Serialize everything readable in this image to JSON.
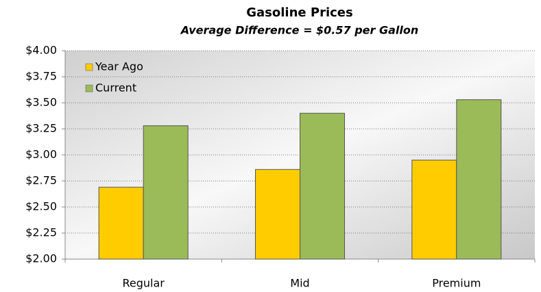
{
  "chart_data": {
    "type": "bar",
    "title": "Gasoline Prices",
    "subtitle": "Average Difference = $0.57 per Gallon",
    "categories": [
      "Regular",
      "Mid",
      "Premium"
    ],
    "series": [
      {
        "name": "Year Ago",
        "color": "#ffcc00",
        "values": [
          2.69,
          2.86,
          2.95
        ]
      },
      {
        "name": "Current",
        "color": "#9bbb59",
        "values": [
          3.28,
          3.4,
          3.53
        ]
      }
    ],
    "ylim": [
      2.0,
      4.0
    ],
    "yticks": [
      {
        "value": 2.0,
        "label": "$2.00"
      },
      {
        "value": 2.25,
        "label": "$2.25"
      },
      {
        "value": 2.5,
        "label": "$2.50"
      },
      {
        "value": 2.75,
        "label": "$2.75"
      },
      {
        "value": 3.0,
        "label": "$3.00"
      },
      {
        "value": 3.25,
        "label": "$3.25"
      },
      {
        "value": 3.5,
        "label": "$3.50"
      },
      {
        "value": 3.75,
        "label": "$3.75"
      },
      {
        "value": 4.0,
        "label": "$4.00"
      }
    ],
    "grid": true,
    "legend": "top-left"
  }
}
